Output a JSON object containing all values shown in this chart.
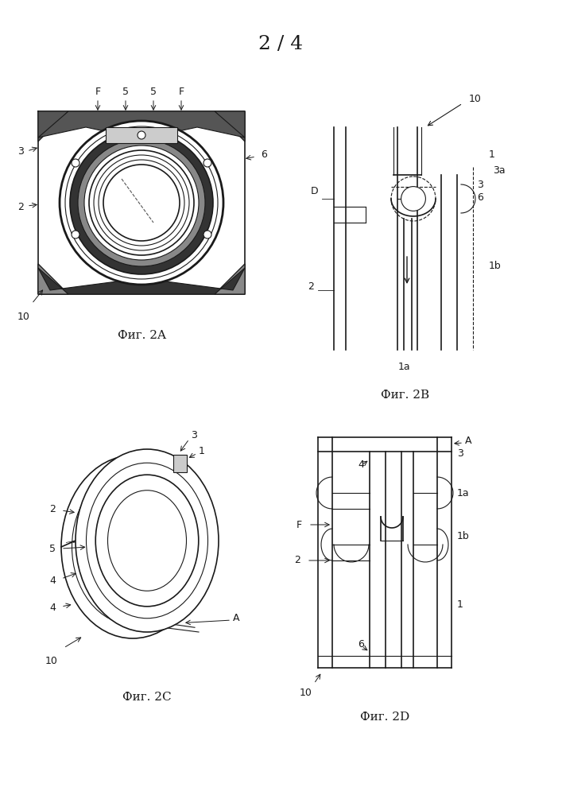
{
  "page_header": "2 / 4",
  "header_fontsize": 18,
  "background_color": "#ffffff",
  "fig_labels": [
    "Фиг. 2A",
    "Фиг. 2B",
    "Фиг. 2C",
    "Фиг. 2D"
  ],
  "line_color": "#1a1a1a",
  "label_fontsize": 11,
  "anno_fontsize": 9
}
